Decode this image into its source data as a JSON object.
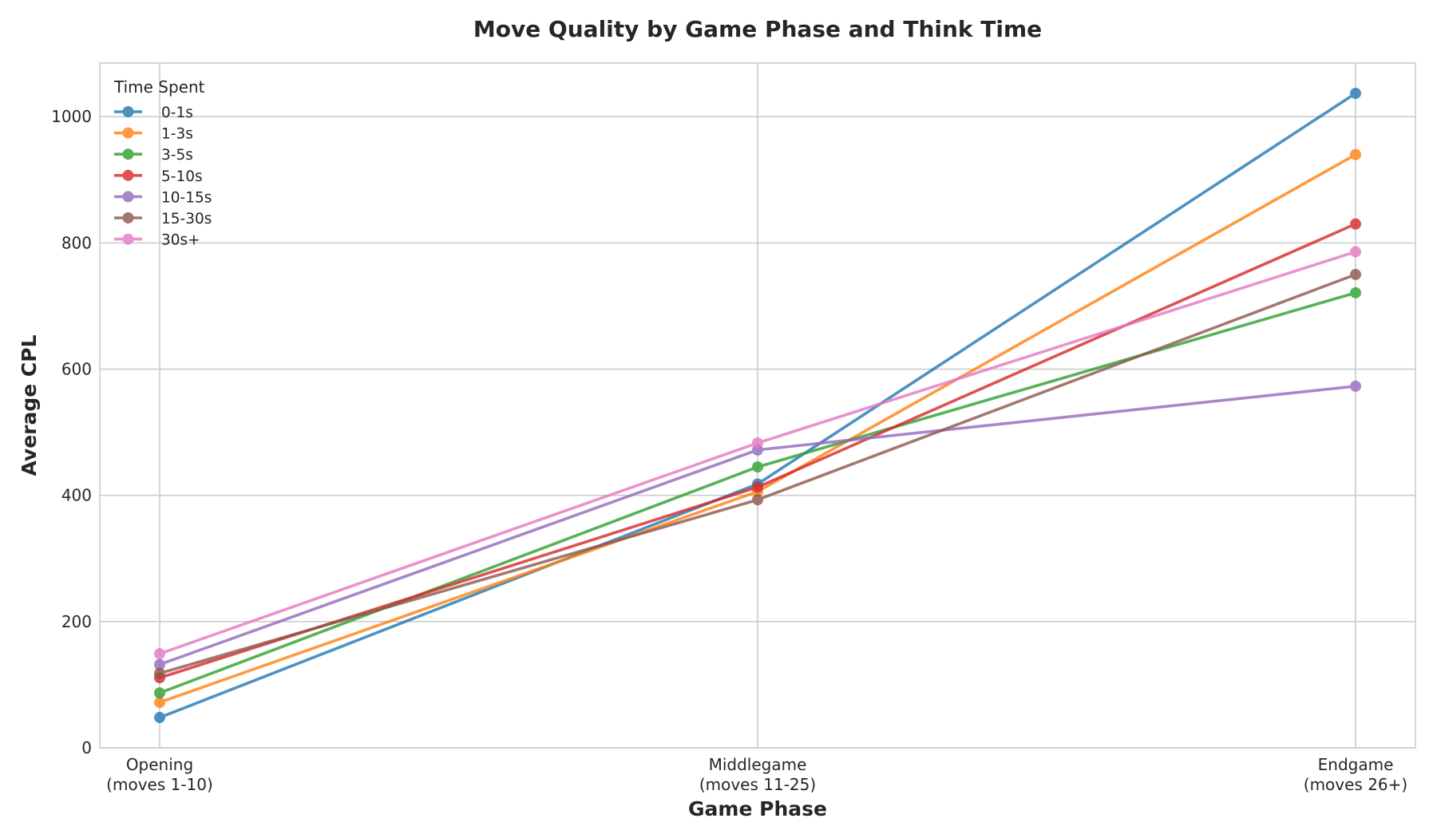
{
  "chart_data": {
    "type": "line",
    "title": "Move Quality by Game Phase and Think Time",
    "xlabel": "Game Phase",
    "ylabel": "Average CPL",
    "categories": [
      [
        "Opening",
        "(moves 1-10)"
      ],
      [
        "Middlegame",
        "(moves 11-25)"
      ],
      [
        "Endgame",
        "(moves 26+)"
      ]
    ],
    "ylim": [
      0,
      1085
    ],
    "yticks": [
      0,
      200,
      400,
      600,
      800,
      1000
    ],
    "grid": true,
    "legend": {
      "title": "Time Spent",
      "placement": "top-left"
    },
    "series": [
      {
        "name": "0-1s",
        "color": "#1f77b4",
        "values": [
          48,
          418,
          1037
        ]
      },
      {
        "name": "1-3s",
        "color": "#ff7f0e",
        "values": [
          72,
          406,
          940
        ]
      },
      {
        "name": "3-5s",
        "color": "#2ca02c",
        "values": [
          87,
          445,
          721
        ]
      },
      {
        "name": "5-10s",
        "color": "#d62728",
        "values": [
          111,
          413,
          830
        ]
      },
      {
        "name": "10-15s",
        "color": "#9467bd",
        "values": [
          132,
          472,
          573
        ]
      },
      {
        "name": "15-30s",
        "color": "#8c564b",
        "values": [
          118,
          393,
          750
        ]
      },
      {
        "name": "30s+",
        "color": "#e377c2",
        "values": [
          149,
          483,
          786
        ]
      }
    ]
  }
}
